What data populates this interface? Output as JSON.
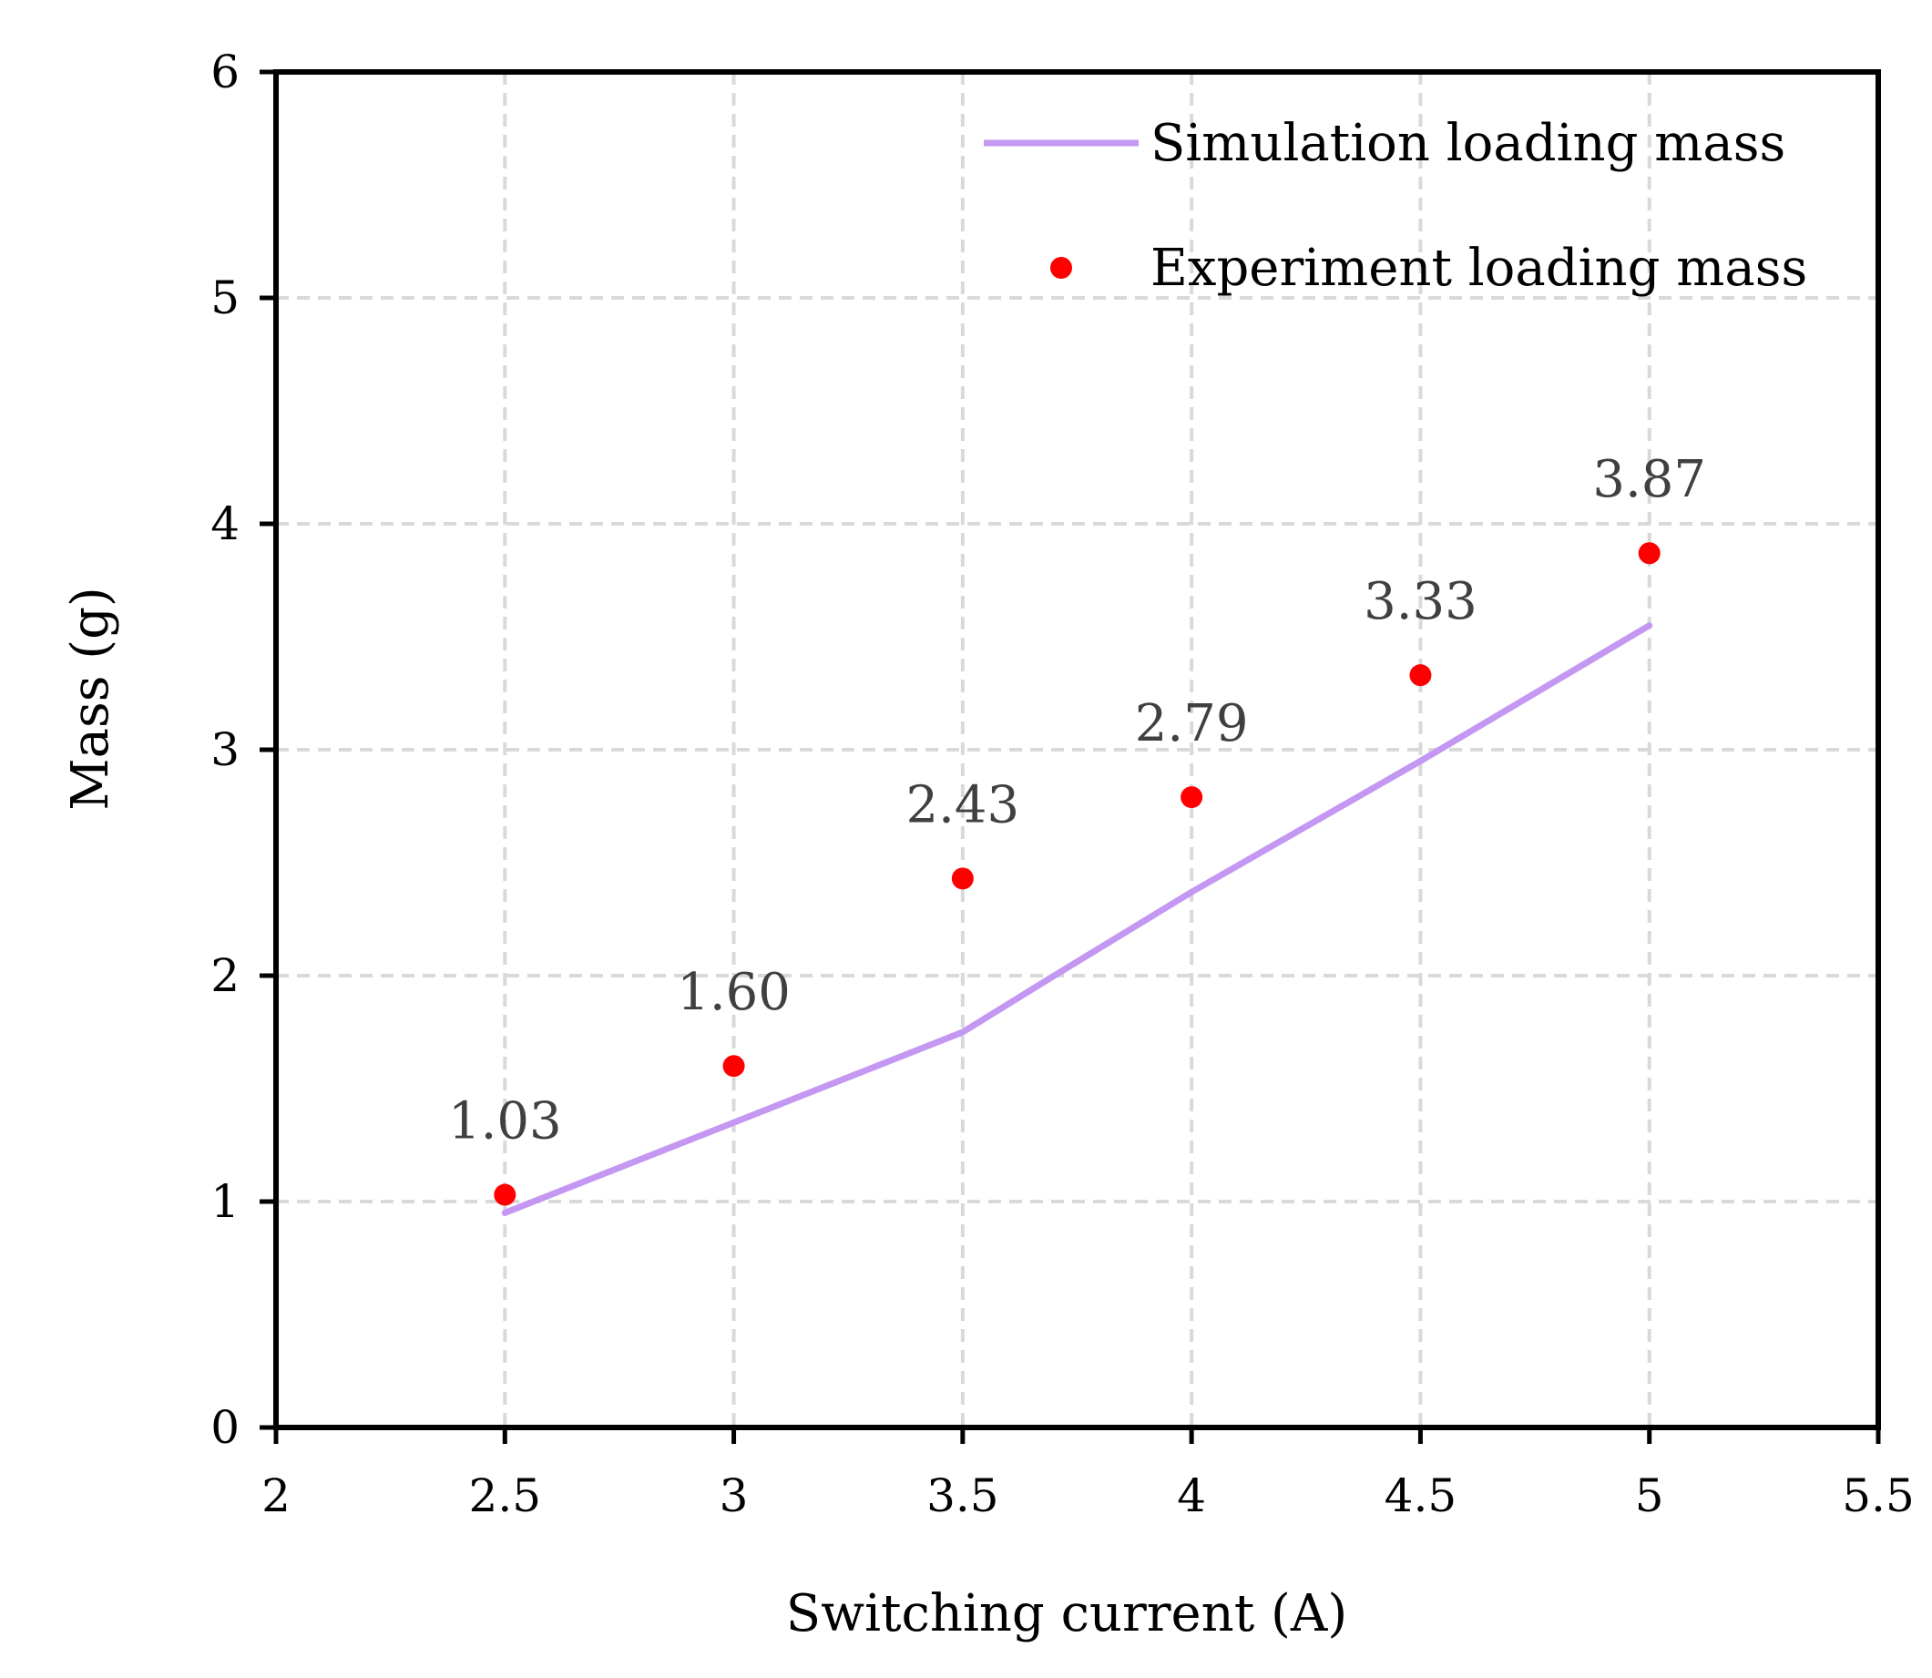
{
  "chart_data": {
    "type": "line",
    "title": "",
    "xlabel": "Switching current (A)",
    "ylabel": "Mass (g)",
    "xlim": [
      2,
      5.5
    ],
    "ylim": [
      0,
      6
    ],
    "xticks": [
      2,
      2.5,
      3,
      3.5,
      4,
      4.5,
      5,
      5.5
    ],
    "yticks": [
      0,
      1,
      2,
      3,
      4,
      5,
      6
    ],
    "grid": true,
    "legend_position": "top-right",
    "series": [
      {
        "name": "Simulation loading mass",
        "kind": "line",
        "color": "#c497f2",
        "x": [
          2.5,
          3.0,
          3.5,
          3.7,
          4.0,
          4.5,
          5.0
        ],
        "values": [
          0.95,
          1.35,
          1.75,
          2.0,
          2.37,
          2.95,
          3.55
        ]
      },
      {
        "name": "Experiment loading mass",
        "kind": "scatter",
        "color": "#ff0000",
        "x": [
          2.5,
          3.0,
          3.5,
          4.0,
          4.5,
          5.0
        ],
        "values": [
          1.03,
          1.6,
          2.43,
          2.79,
          3.33,
          3.87
        ],
        "labels": [
          "1.03",
          "1.60",
          "2.43",
          "2.79",
          "3.33",
          "3.87"
        ]
      }
    ]
  }
}
